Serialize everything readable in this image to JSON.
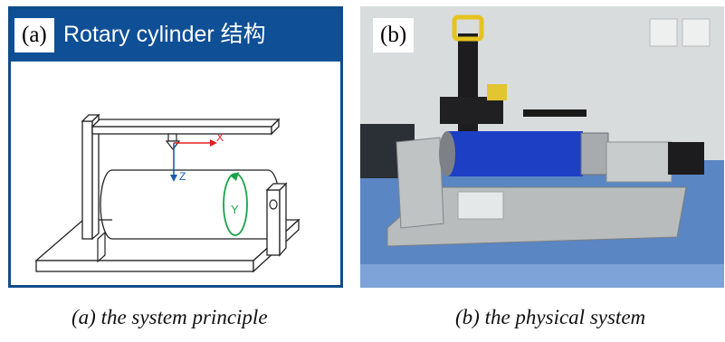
{
  "panel_a": {
    "label": "(a)",
    "title": "Rotary cylinder 结构",
    "axes": {
      "x": "X",
      "z": "Z",
      "y": "Y"
    },
    "colors": {
      "banner": "#0e4f96",
      "x_axis": "#e02020",
      "z_axis": "#1a5fb0",
      "y_rotation": "#1aa34a"
    }
  },
  "panel_b": {
    "label": "(b)"
  },
  "captions": {
    "a": "(a) the system principle",
    "b": "(b) the physical system"
  }
}
